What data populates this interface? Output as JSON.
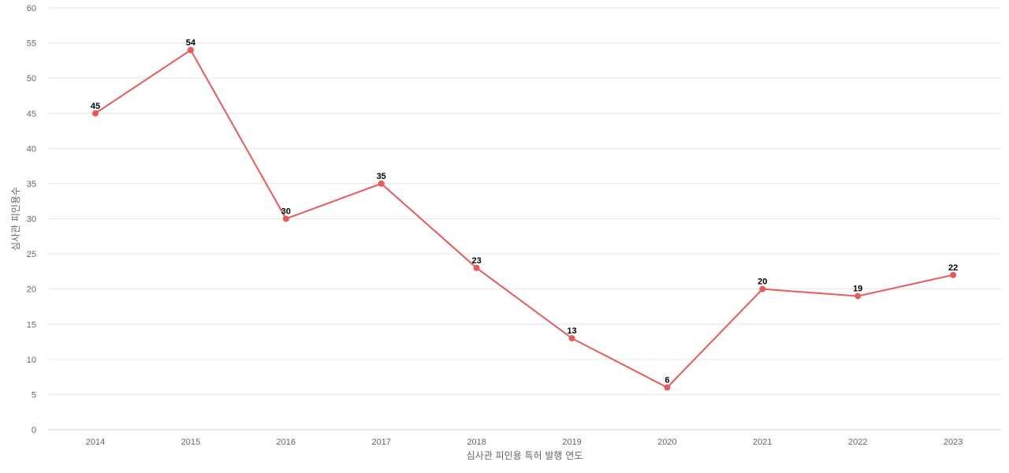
{
  "chart_data": {
    "type": "line",
    "categories": [
      "2014",
      "2015",
      "2016",
      "2017",
      "2018",
      "2019",
      "2020",
      "2021",
      "2022",
      "2023"
    ],
    "series": [
      {
        "values": [
          45,
          54,
          30,
          35,
          23,
          13,
          6,
          20,
          19,
          22
        ]
      }
    ],
    "xlabel": "심사관 피인용 특허 발행 연도",
    "ylabel": "심사관 피인용수",
    "ylim": [
      0,
      60
    ],
    "yticks": [
      0,
      5,
      10,
      15,
      20,
      25,
      30,
      35,
      40,
      45,
      50,
      55,
      60
    ],
    "grid": true,
    "data_labels": true,
    "colors": {
      "line": "#e85a5a",
      "point": "#e85a5a"
    }
  }
}
